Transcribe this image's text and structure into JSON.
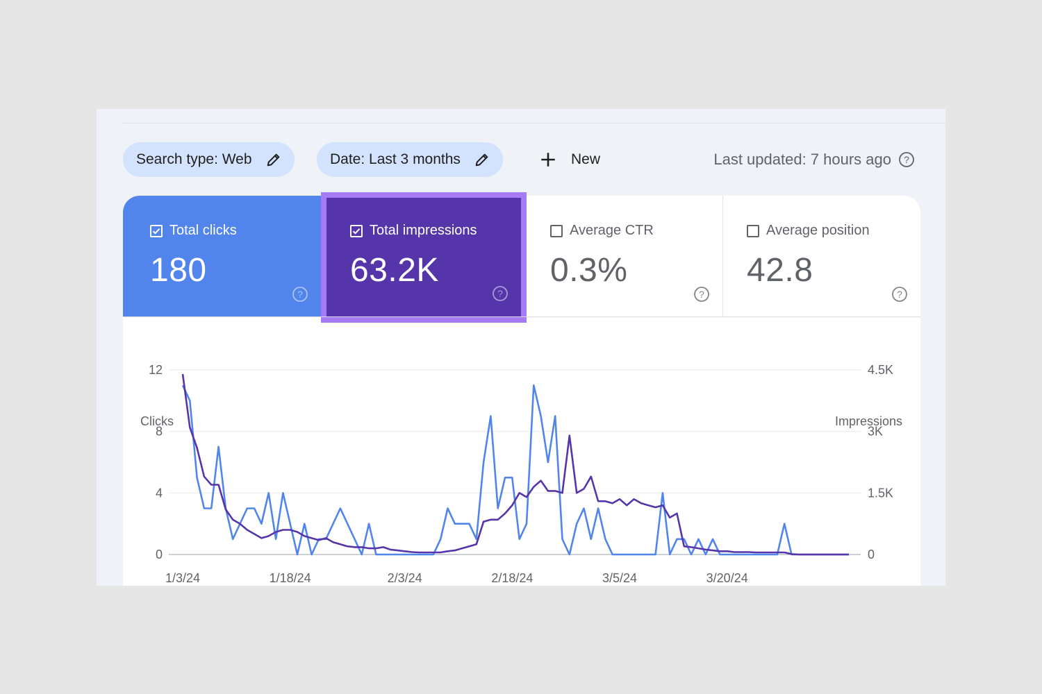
{
  "filters": {
    "search_type": "Search type: Web",
    "date": "Date: Last 3 months",
    "new_label": "New",
    "last_updated": "Last updated: 7 hours ago"
  },
  "metrics": {
    "clicks": {
      "label": "Total clicks",
      "value": "180",
      "checked": true,
      "color": "#5185ec"
    },
    "impressions": {
      "label": "Total impressions",
      "value": "63.2K",
      "checked": true,
      "color": "#5535a9",
      "highlight": "#a57cf6"
    },
    "ctr": {
      "label": "Average CTR",
      "value": "0.3%",
      "checked": false
    },
    "position": {
      "label": "Average position",
      "value": "42.8",
      "checked": false
    }
  },
  "chart_data": {
    "type": "line",
    "ylabel_left": "Clicks",
    "ylabel_right": "Impressions",
    "left_ticks": [
      "12",
      "8",
      "4",
      "0"
    ],
    "right_ticks": [
      "4.5K",
      "3K",
      "1.5K",
      "0"
    ],
    "ylim_left": [
      0,
      12
    ],
    "ylim_right": [
      0,
      4500
    ],
    "x_ticks": [
      "1/3/24",
      "1/18/24",
      "2/3/24",
      "2/18/24",
      "3/5/24",
      "3/20/24"
    ],
    "x_tick_index": [
      0,
      15,
      31,
      46,
      61,
      76
    ],
    "grid": true,
    "series": [
      {
        "name": "Clicks",
        "axis": "left",
        "color": "#5185ec",
        "values": [
          11,
          10,
          5,
          3,
          3,
          7,
          3,
          1,
          2,
          3,
          3,
          2,
          4,
          1,
          4,
          2,
          0,
          2,
          0,
          1,
          1,
          2,
          3,
          2,
          1,
          0,
          2,
          0,
          0,
          0,
          0,
          0,
          0,
          0,
          0,
          0,
          1,
          3,
          2,
          2,
          2,
          1,
          6,
          9,
          3,
          5,
          5,
          1,
          2,
          11,
          9,
          6,
          9,
          1,
          0,
          2,
          3,
          1,
          3,
          1,
          0,
          0,
          0,
          0,
          0,
          0,
          0,
          4,
          0,
          1,
          1,
          0,
          1,
          0,
          1,
          0,
          0,
          0,
          0,
          0,
          0,
          0,
          0,
          0,
          2,
          0,
          0,
          0,
          0,
          0,
          0,
          0,
          0,
          0
        ]
      },
      {
        "name": "Impressions",
        "axis": "right",
        "color": "#5535a9",
        "values": [
          4400,
          3100,
          2600,
          1900,
          1700,
          1700,
          1100,
          850,
          750,
          600,
          500,
          400,
          450,
          550,
          600,
          600,
          550,
          450,
          400,
          350,
          400,
          300,
          250,
          200,
          180,
          180,
          150,
          150,
          180,
          120,
          100,
          80,
          60,
          50,
          50,
          50,
          50,
          80,
          100,
          150,
          200,
          250,
          800,
          850,
          850,
          1000,
          1200,
          1500,
          1400,
          1650,
          1800,
          1550,
          1550,
          1500,
          2900,
          1500,
          1600,
          1900,
          1300,
          1300,
          1250,
          1350,
          1200,
          1350,
          1250,
          1200,
          1150,
          1200,
          900,
          1000,
          200,
          180,
          150,
          120,
          100,
          80,
          80,
          60,
          60,
          60,
          50,
          50,
          50,
          50,
          50,
          10,
          0,
          0,
          0,
          0,
          0,
          0,
          0,
          0
        ]
      }
    ]
  }
}
